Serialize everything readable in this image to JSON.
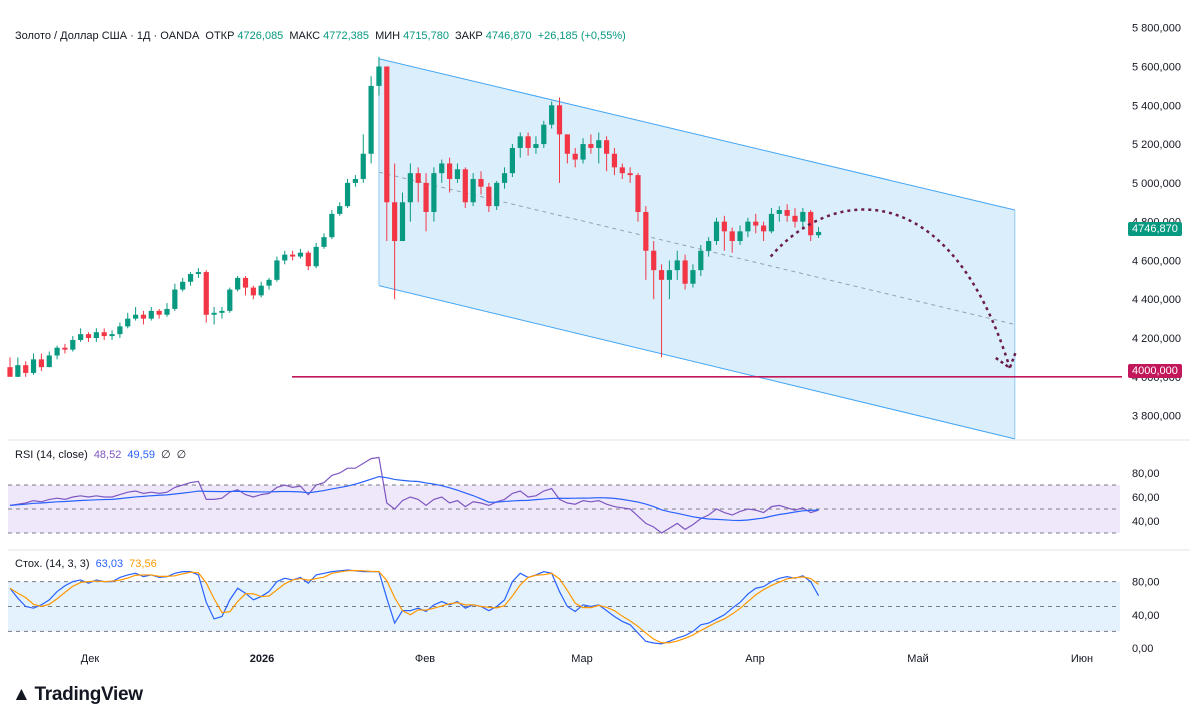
{
  "header": {
    "symbol": "Золото / Доллар США · 1Д · OANDA",
    "open_label": "ОТКР",
    "open_value": "4726,085",
    "high_label": "МАКС",
    "high_value": "4772,385",
    "low_label": "МИН",
    "low_value": "4715,780",
    "close_label": "ЗАКР",
    "close_value": "4746,870",
    "change": "+26,185 (+0,55%)"
  },
  "rsi_legend": {
    "label": "RSI (14, close)",
    "value1": "48,52",
    "value2": "49,59",
    "extra1": "∅",
    "extra2": "∅"
  },
  "stoch_legend": {
    "label": "Стох. (14, 3, 3)",
    "value1": "63,03",
    "value2": "73,56"
  },
  "price_badge": "4746,870",
  "level_badge": "4000,000",
  "brand": "TradingView",
  "colors": {
    "up": "#089981",
    "down": "#f23645",
    "level": "#c2185b",
    "channel": "#bbdefb",
    "rsi": "#7e57c2",
    "rsi_ma": "#2962ff",
    "stoch_k": "#2962ff",
    "stoch_d": "#ff9800"
  },
  "chart_data": {
    "type": "candlestick",
    "price_axis": {
      "ticks": [
        "5 800,000",
        "5 600,000",
        "5 400,000",
        "5 200,000",
        "5 000,000",
        "4 800,000",
        "4 600,000",
        "4 400,000",
        "4 200,000",
        "4 000,000",
        "3 800,000"
      ],
      "range": [
        3700,
        5850
      ]
    },
    "time_axis": {
      "labels": [
        "Дек",
        "2026",
        "Фев",
        "Мар",
        "Апр",
        "Май",
        "Июн"
      ]
    },
    "candles": [
      [
        4050,
        4000,
        4100,
        4050
      ],
      [
        4000,
        4060,
        4100,
        4000
      ],
      [
        4060,
        4020,
        4080,
        4000
      ],
      [
        4020,
        4090,
        4120,
        4010
      ],
      [
        4090,
        4050,
        4120,
        4030
      ],
      [
        4050,
        4110,
        4130,
        4050
      ],
      [
        4110,
        4150,
        4160,
        4090
      ],
      [
        4150,
        4140,
        4170,
        4120
      ],
      [
        4140,
        4190,
        4210,
        4130
      ],
      [
        4190,
        4220,
        4250,
        4180
      ],
      [
        4220,
        4200,
        4230,
        4180
      ],
      [
        4200,
        4230,
        4250,
        4180
      ],
      [
        4230,
        4210,
        4250,
        4190
      ],
      [
        4210,
        4220,
        4240,
        4190
      ],
      [
        4220,
        4260,
        4280,
        4200
      ],
      [
        4260,
        4300,
        4330,
        4250
      ],
      [
        4300,
        4320,
        4360,
        4290
      ],
      [
        4320,
        4300,
        4340,
        4270
      ],
      [
        4300,
        4340,
        4360,
        4290
      ],
      [
        4340,
        4320,
        4350,
        4300
      ],
      [
        4320,
        4350,
        4380,
        4310
      ],
      [
        4350,
        4450,
        4480,
        4340
      ],
      [
        4450,
        4490,
        4510,
        4440
      ],
      [
        4490,
        4530,
        4540,
        4470
      ],
      [
        4530,
        4540,
        4560,
        4510
      ],
      [
        4540,
        4320,
        4550,
        4280
      ],
      [
        4320,
        4330,
        4360,
        4270
      ],
      [
        4330,
        4340,
        4360,
        4300
      ],
      [
        4340,
        4450,
        4460,
        4330
      ],
      [
        4450,
        4510,
        4520,
        4440
      ],
      [
        4510,
        4460,
        4520,
        4420
      ],
      [
        4460,
        4420,
        4470,
        4400
      ],
      [
        4420,
        4470,
        4490,
        4410
      ],
      [
        4470,
        4500,
        4510,
        4450
      ],
      [
        4500,
        4600,
        4620,
        4490
      ],
      [
        4600,
        4630,
        4650,
        4580
      ],
      [
        4630,
        4620,
        4650,
        4600
      ],
      [
        4620,
        4640,
        4660,
        4610
      ],
      [
        4640,
        4570,
        4650,
        4550
      ],
      [
        4570,
        4670,
        4690,
        4560
      ],
      [
        4670,
        4720,
        4740,
        4660
      ],
      [
        4720,
        4840,
        4860,
        4710
      ],
      [
        4840,
        4880,
        4900,
        4830
      ],
      [
        4880,
        5000,
        5020,
        4870
      ],
      [
        5000,
        5020,
        5040,
        4980
      ],
      [
        5020,
        5150,
        5250,
        5000
      ],
      [
        5150,
        5500,
        5550,
        5100
      ],
      [
        5500,
        5600,
        5650,
        5450
      ],
      [
        5600,
        4900,
        5600,
        4700
      ],
      [
        4900,
        4700,
        5100,
        4400
      ],
      [
        4700,
        4900,
        4950,
        4700
      ],
      [
        4900,
        5050,
        5100,
        4800
      ],
      [
        5050,
        5000,
        5080,
        4900
      ],
      [
        5000,
        4850,
        5050,
        4750
      ],
      [
        4850,
        5050,
        5080,
        4800
      ],
      [
        5050,
        5100,
        5120,
        5000
      ],
      [
        5100,
        5020,
        5130,
        4950
      ],
      [
        5020,
        5070,
        5100,
        5000
      ],
      [
        5070,
        4900,
        5080,
        4870
      ],
      [
        4900,
        5020,
        5050,
        4880
      ],
      [
        5020,
        4980,
        5060,
        4940
      ],
      [
        4980,
        4880,
        5000,
        4850
      ],
      [
        4880,
        5000,
        5010,
        4860
      ],
      [
        5000,
        5050,
        5080,
        4970
      ],
      [
        5050,
        5180,
        5200,
        5030
      ],
      [
        5180,
        5240,
        5260,
        5130
      ],
      [
        5240,
        5180,
        5260,
        5140
      ],
      [
        5180,
        5200,
        5240,
        5150
      ],
      [
        5200,
        5300,
        5320,
        5180
      ],
      [
        5300,
        5400,
        5420,
        5280
      ],
      [
        5400,
        5250,
        5440,
        5000
      ],
      [
        5250,
        5150,
        5250,
        5100
      ],
      [
        5150,
        5120,
        5180,
        5080
      ],
      [
        5120,
        5200,
        5230,
        5100
      ],
      [
        5200,
        5180,
        5250,
        5150
      ],
      [
        5180,
        5220,
        5260,
        5100
      ],
      [
        5220,
        5150,
        5240,
        5060
      ],
      [
        5150,
        5080,
        5180,
        5040
      ],
      [
        5080,
        5050,
        5100,
        5020
      ],
      [
        5050,
        5040,
        5080,
        5000
      ],
      [
        5040,
        4850,
        5050,
        4800
      ],
      [
        4850,
        4650,
        4880,
        4500
      ],
      [
        4650,
        4550,
        4700,
        4400
      ],
      [
        4550,
        4500,
        4580,
        4100
      ],
      [
        4500,
        4550,
        4600,
        4400
      ],
      [
        4550,
        4600,
        4650,
        4500
      ],
      [
        4600,
        4480,
        4630,
        4450
      ],
      [
        4480,
        4550,
        4580,
        4460
      ],
      [
        4550,
        4650,
        4680,
        4520
      ],
      [
        4650,
        4700,
        4720,
        4620
      ],
      [
        4700,
        4800,
        4820,
        4680
      ],
      [
        4800,
        4750,
        4830,
        4650
      ],
      [
        4750,
        4700,
        4770,
        4640
      ],
      [
        4700,
        4750,
        4780,
        4680
      ],
      [
        4750,
        4800,
        4820,
        4720
      ],
      [
        4800,
        4780,
        4840,
        4740
      ],
      [
        4780,
        4750,
        4800,
        4700
      ],
      [
        4750,
        4840,
        4870,
        4740
      ],
      [
        4840,
        4860,
        4880,
        4800
      ],
      [
        4860,
        4830,
        4890,
        4800
      ],
      [
        4830,
        4800,
        4870,
        4770
      ],
      [
        4800,
        4850,
        4870,
        4760
      ],
      [
        4850,
        4730,
        4860,
        4700
      ],
      [
        4730,
        4747,
        4772,
        4716
      ]
    ],
    "horizontal_level": 4000,
    "channel": {
      "upper": [
        [
          47,
          5640
        ],
        [
          128,
          4860
        ]
      ],
      "lower": [
        [
          47,
          4470
        ],
        [
          128,
          3680
        ]
      ]
    },
    "projection": {
      "from": [
        102,
        4790
      ],
      "to": [
        128,
        4020
      ],
      "style": "dashed-arc-arrow"
    },
    "rsi": {
      "ticks": [
        "80,00",
        "60,00",
        "40,00"
      ],
      "bands": [
        70,
        50,
        30
      ],
      "values": [
        53,
        54,
        55,
        57,
        56,
        58,
        59,
        58,
        60,
        61,
        60,
        61,
        60,
        60,
        62,
        64,
        65,
        63,
        64,
        63,
        64,
        68,
        70,
        72,
        73,
        58,
        58,
        59,
        64,
        66,
        62,
        60,
        62,
        63,
        68,
        70,
        68,
        69,
        62,
        70,
        72,
        78,
        80,
        84,
        84,
        88,
        92,
        93,
        55,
        50,
        57,
        60,
        58,
        53,
        58,
        60,
        55,
        57,
        52,
        56,
        55,
        53,
        56,
        58,
        63,
        65,
        60,
        61,
        65,
        67,
        58,
        55,
        54,
        57,
        56,
        57,
        54,
        52,
        51,
        50,
        44,
        38,
        35,
        30,
        34,
        38,
        33,
        37,
        42,
        45,
        50,
        47,
        45,
        48,
        50,
        49,
        47,
        52,
        53,
        51,
        49,
        51,
        47,
        49
      ]
    },
    "stoch": {
      "ticks": [
        "80,00",
        "40,00",
        "0,00"
      ],
      "bands": [
        80,
        50,
        20
      ],
      "values": [
        72,
        60,
        50,
        48,
        52,
        58,
        68,
        75,
        80,
        82,
        78,
        82,
        80,
        80,
        85,
        88,
        90,
        86,
        88,
        85,
        86,
        90,
        92,
        92,
        88,
        55,
        35,
        38,
        58,
        72,
        66,
        58,
        62,
        68,
        80,
        84,
        82,
        85,
        78,
        88,
        90,
        92,
        93,
        94,
        93,
        92,
        92,
        92,
        60,
        30,
        45,
        45,
        48,
        44,
        52,
        56,
        52,
        56,
        48,
        52,
        50,
        45,
        50,
        58,
        80,
        90,
        85,
        88,
        92,
        90,
        68,
        50,
        44,
        52,
        50,
        52,
        45,
        38,
        32,
        28,
        18,
        8,
        6,
        5,
        8,
        12,
        15,
        20,
        28,
        30,
        35,
        40,
        48,
        55,
        65,
        72,
        74,
        80,
        84,
        86,
        84,
        87,
        80,
        63
      ]
    }
  }
}
